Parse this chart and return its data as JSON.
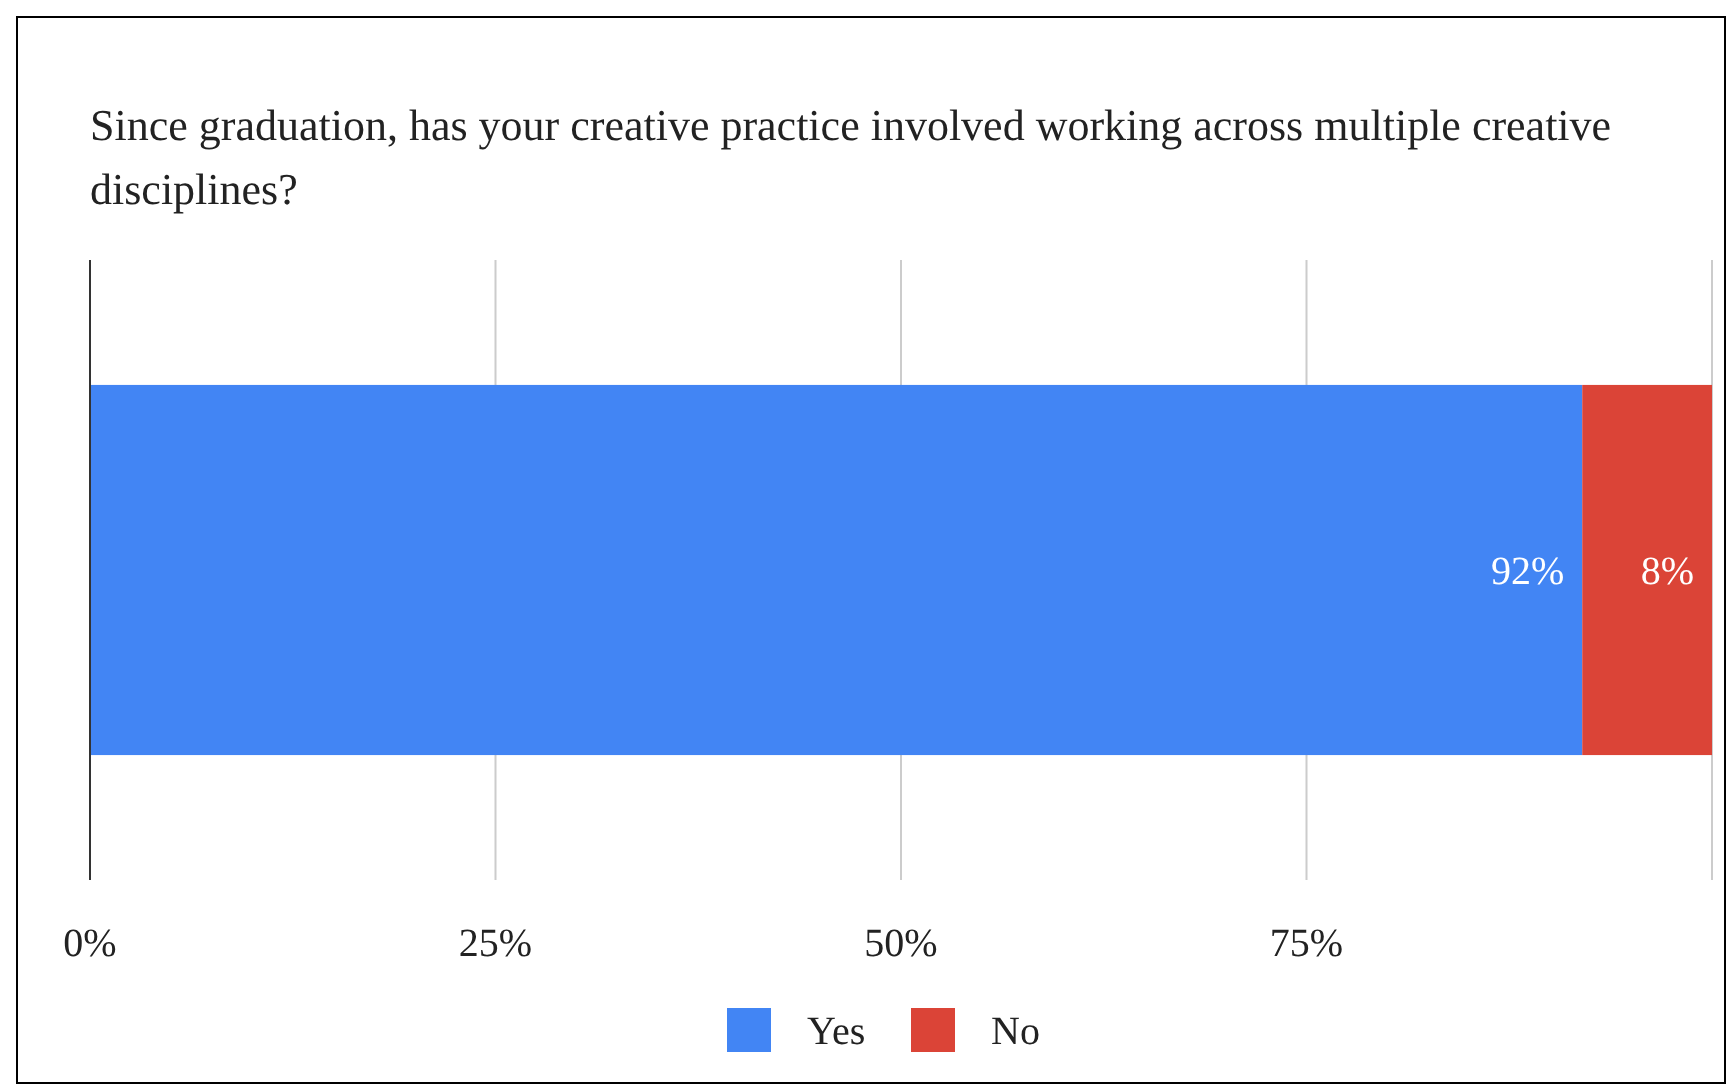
{
  "chart_data": {
    "type": "bar",
    "orientation": "horizontal",
    "stacked": true,
    "title": "Since graduation, has your creative practice involved working across multiple creative disciplines?",
    "categories": [
      null
    ],
    "series": [
      {
        "name": "Yes",
        "color": "#4285f4",
        "values": [
          92
        ],
        "value_labels": [
          "92%"
        ]
      },
      {
        "name": "No",
        "color": "#db4437",
        "values": [
          8
        ],
        "value_labels": [
          "8%"
        ]
      }
    ],
    "xlim": [
      0,
      100
    ],
    "xticks": [
      {
        "value": 0,
        "label": "0%"
      },
      {
        "value": 25,
        "label": "25%"
      },
      {
        "value": 50,
        "label": "50%"
      },
      {
        "value": 75,
        "label": "75%"
      },
      {
        "value": 100,
        "label": null
      }
    ],
    "grid": "x",
    "legend": "bottom"
  }
}
